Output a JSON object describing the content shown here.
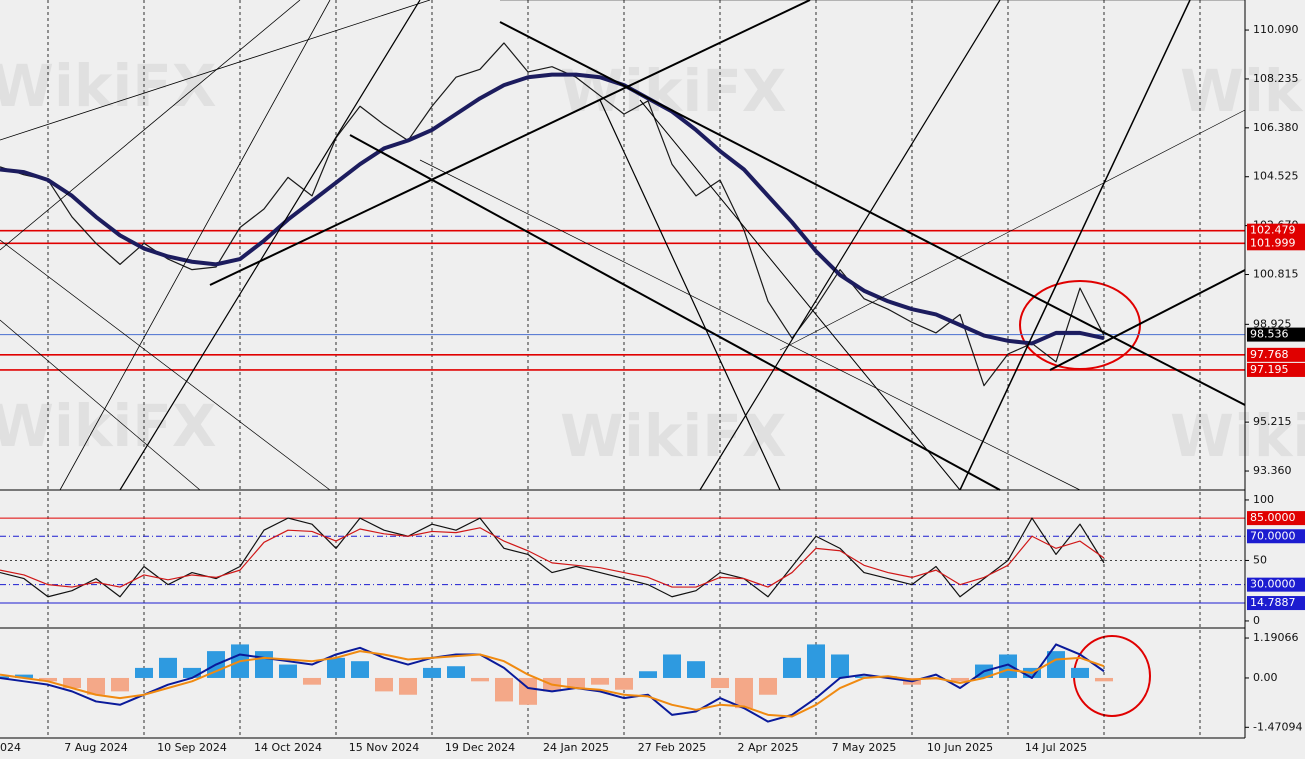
{
  "watermark": "WikiFX",
  "chart_data": [
    {
      "type": "line",
      "categories": [
        "024",
        null,
        null,
        null,
        "7 Aug 2024",
        null,
        null,
        null,
        "10 Sep 2024",
        null,
        null,
        null,
        "14 Oct 2024",
        null,
        null,
        null,
        "15 Nov 2024",
        null,
        null,
        null,
        "19 Dec 2024",
        null,
        null,
        null,
        "24 Jan 2025",
        null,
        null,
        null,
        "27 Feb 2025",
        null,
        null,
        null,
        "2 Apr 2025",
        null,
        null,
        null,
        "7 May 2025",
        null,
        null,
        null,
        "10 Jun 2025",
        null,
        null,
        null,
        "14 Jul 2025",
        null,
        null
      ],
      "series": [
        {
          "color": "#1a1a1a",
          "values": [
            104.9,
            104.6,
            104.4,
            103.0,
            102.0,
            101.2,
            102.0,
            101.4,
            101.0,
            101.1,
            102.6,
            103.3,
            104.5,
            103.8,
            106.0,
            107.2,
            106.5,
            105.9,
            107.2,
            108.3,
            108.6,
            109.6,
            108.5,
            108.7,
            108.3,
            107.6,
            106.9,
            107.4,
            105.0,
            103.8,
            104.4,
            102.5,
            99.8,
            98.4,
            99.6,
            101.0,
            99.9,
            99.5,
            99.0,
            98.6,
            99.3,
            96.6,
            97.8,
            98.2,
            97.5,
            100.3,
            98.5
          ]
        },
        {
          "color": "#1c1c5e",
          "values": [
            104.8,
            104.7,
            104.4,
            103.8,
            103.0,
            102.3,
            101.8,
            101.5,
            101.3,
            101.2,
            101.4,
            102.1,
            102.9,
            103.6,
            104.3,
            105.0,
            105.6,
            105.9,
            106.3,
            106.9,
            107.5,
            108.0,
            108.3,
            108.4,
            108.4,
            108.3,
            108.0,
            107.5,
            107.0,
            106.3,
            105.5,
            104.8,
            103.8,
            102.8,
            101.7,
            100.8,
            100.2,
            99.8,
            99.5,
            99.3,
            98.9,
            98.5,
            98.3,
            98.2,
            98.6,
            98.6,
            98.4
          ]
        }
      ],
      "ylim": [
        92.64,
        111.23
      ],
      "yticks": [
        {
          "value": 110.09,
          "label": "110.090"
        },
        108.235,
        {
          "value": 106.38,
          "label": "106.380"
        },
        104.525,
        {
          "value": 102.67,
          "label": "102.670"
        },
        100.815,
        98.925,
        95.215,
        {
          "value": 93.36,
          "label": "93.360"
        }
      ],
      "levels": [
        {
          "value": 102.479,
          "color": "#e00000"
        },
        {
          "value": 101.999,
          "color": "#e00000"
        },
        {
          "value": 98.536,
          "color": "#000000"
        },
        {
          "value": 97.768,
          "color": "#e00000"
        },
        {
          "value": 97.195,
          "color": "#e00000"
        }
      ]
    },
    {
      "type": "line",
      "series": [
        {
          "color": "#111111",
          "values": [
            40,
            35,
            20,
            25,
            35,
            20,
            45,
            30,
            40,
            35,
            45,
            75,
            85,
            80,
            60,
            85,
            75,
            70,
            80,
            75,
            85,
            60,
            55,
            40,
            45,
            40,
            35,
            30,
            20,
            25,
            40,
            35,
            20,
            45,
            70,
            60,
            40,
            35,
            30,
            45,
            20,
            35,
            50,
            85,
            55,
            80,
            48
          ]
        },
        {
          "color": "#d01818",
          "values": [
            42,
            38,
            30,
            28,
            32,
            28,
            38,
            34,
            38,
            36,
            42,
            65,
            75,
            74,
            66,
            76,
            72,
            70,
            74,
            73,
            77,
            66,
            58,
            48,
            46,
            44,
            40,
            36,
            28,
            28,
            36,
            35,
            28,
            40,
            60,
            58,
            46,
            40,
            36,
            42,
            30,
            36,
            46,
            70,
            60,
            66,
            52
          ]
        }
      ],
      "ylim": [
        -5,
        107.4
      ],
      "yticks": [
        100,
        50,
        0
      ],
      "levels": [
        {
          "value": 85,
          "label": "85.0000",
          "color": "#e00000"
        },
        {
          "value": 70,
          "label": "70.0000",
          "color": "#1c1cd0"
        },
        {
          "value": 30,
          "label": "30.0000",
          "color": "#1c1cd0"
        },
        {
          "value": 14.7887,
          "color": "#1c1cd0"
        }
      ]
    },
    {
      "type": "bar",
      "values": [
        0.05,
        0.1,
        -0.1,
        -0.3,
        -0.5,
        -0.4,
        0.3,
        0.6,
        0.3,
        0.8,
        1.0,
        0.8,
        0.4,
        -0.2,
        0.6,
        0.5,
        -0.4,
        -0.5,
        0.3,
        0.35,
        -0.1,
        -0.7,
        -0.8,
        -0.4,
        -0.3,
        -0.2,
        -0.35,
        0.2,
        0.7,
        0.5,
        -0.3,
        -0.9,
        -0.5,
        0.6,
        1.0,
        0.7,
        0.05,
        0.05,
        -0.2,
        -0.05,
        -0.1,
        0.4,
        0.7,
        0.3,
        0.8,
        0.3,
        -0.1
      ],
      "colors": {
        "positive": "#2e9ae0",
        "negative": "#f4a888"
      },
      "series": [
        {
          "color": "#0a1a9a",
          "values": [
            0.0,
            -0.1,
            -0.2,
            -0.4,
            -0.7,
            -0.8,
            -0.5,
            -0.2,
            0.0,
            0.4,
            0.7,
            0.6,
            0.5,
            0.4,
            0.7,
            0.9,
            0.6,
            0.4,
            0.6,
            0.7,
            0.7,
            0.3,
            -0.3,
            -0.4,
            -0.3,
            -0.4,
            -0.6,
            -0.5,
            -1.1,
            -1.0,
            -0.6,
            -0.9,
            -1.3,
            -1.1,
            -0.6,
            0.0,
            0.1,
            0.0,
            -0.1,
            0.1,
            -0.3,
            0.2,
            0.4,
            0.0,
            1.0,
            0.7,
            0.2
          ]
        },
        {
          "color": "#f08a10",
          "values": [
            0.1,
            0.0,
            -0.1,
            -0.3,
            -0.5,
            -0.6,
            -0.5,
            -0.3,
            -0.1,
            0.2,
            0.5,
            0.6,
            0.55,
            0.5,
            0.6,
            0.8,
            0.7,
            0.55,
            0.6,
            0.65,
            0.7,
            0.5,
            0.1,
            -0.2,
            -0.3,
            -0.35,
            -0.5,
            -0.55,
            -0.8,
            -0.95,
            -0.8,
            -0.85,
            -1.1,
            -1.15,
            -0.8,
            -0.3,
            0.0,
            0.05,
            -0.05,
            0.0,
            -0.15,
            0.0,
            0.25,
            0.15,
            0.55,
            0.6,
            0.35
          ]
        }
      ],
      "ylim": [
        -1.79,
        1.43
      ],
      "yticks": [
        1.19066,
        {
          "value": 0,
          "label": "0.00"
        },
        -1.47094
      ]
    }
  ]
}
